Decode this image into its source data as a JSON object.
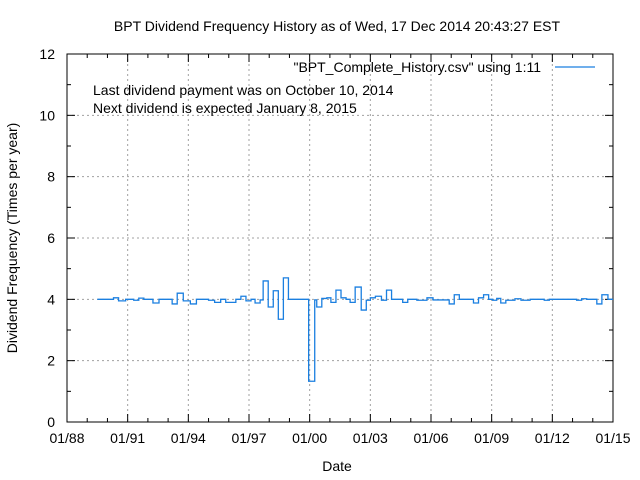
{
  "chart_data": {
    "type": "line",
    "step": true,
    "title": "BPT Dividend Frequency History as of Wed, 17 Dec 2014 20:43:27 EST",
    "xlabel": "Date",
    "ylabel": "Dividend Frequency (Times per year)",
    "xlim": [
      1988.0,
      2015.0
    ],
    "ylim": [
      0,
      12
    ],
    "grid": true,
    "legend": {
      "position": "top-right",
      "entries": [
        "\"BPT_Complete_History.csv\" using 1:11"
      ]
    },
    "annotations": [
      "Last dividend payment was on October 10, 2014",
      "Next dividend is expected January 8, 2015"
    ],
    "xticks": [
      {
        "value": 1988,
        "label": "01/88"
      },
      {
        "value": 1991,
        "label": "01/91"
      },
      {
        "value": 1994,
        "label": "01/94"
      },
      {
        "value": 1997,
        "label": "01/97"
      },
      {
        "value": 2000,
        "label": "01/00"
      },
      {
        "value": 2003,
        "label": "01/03"
      },
      {
        "value": 2006,
        "label": "01/06"
      },
      {
        "value": 2009,
        "label": "01/09"
      },
      {
        "value": 2012,
        "label": "01/12"
      },
      {
        "value": 2015,
        "label": "01/15"
      }
    ],
    "yticks": [
      {
        "value": 0,
        "label": "0"
      },
      {
        "value": 2,
        "label": "2"
      },
      {
        "value": 4,
        "label": "4"
      },
      {
        "value": 6,
        "label": "6"
      },
      {
        "value": 8,
        "label": "8"
      },
      {
        "value": 10,
        "label": "10"
      },
      {
        "value": 12,
        "label": "12"
      }
    ],
    "series": [
      {
        "name": "\"BPT_Complete_History.csv\" using 1:11",
        "color": "#1a7fe0",
        "points": [
          [
            1989.5,
            4.0
          ],
          [
            1990.3,
            4.05
          ],
          [
            1990.55,
            3.95
          ],
          [
            1990.9,
            4.0
          ],
          [
            1991.3,
            3.97
          ],
          [
            1991.55,
            4.04
          ],
          [
            1991.8,
            4.0
          ],
          [
            1992.25,
            3.88
          ],
          [
            1992.55,
            4.0
          ],
          [
            1993.2,
            3.85
          ],
          [
            1993.45,
            4.2
          ],
          [
            1993.75,
            3.95
          ],
          [
            1994.1,
            3.85
          ],
          [
            1994.4,
            4.0
          ],
          [
            1995.0,
            3.97
          ],
          [
            1995.3,
            3.9
          ],
          [
            1995.6,
            4.0
          ],
          [
            1995.85,
            3.9
          ],
          [
            1996.35,
            4.0
          ],
          [
            1996.6,
            4.1
          ],
          [
            1996.85,
            3.95
          ],
          [
            1997.1,
            4.0
          ],
          [
            1997.3,
            3.88
          ],
          [
            1997.55,
            3.98
          ],
          [
            1997.7,
            4.6
          ],
          [
            1997.95,
            3.75
          ],
          [
            1998.2,
            4.28
          ],
          [
            1998.45,
            3.35
          ],
          [
            1998.7,
            4.7
          ],
          [
            1998.95,
            4.0
          ],
          [
            1999.95,
            1.33
          ],
          [
            2000.25,
            3.98
          ],
          [
            2000.35,
            3.75
          ],
          [
            2000.6,
            4.03
          ],
          [
            2000.85,
            4.05
          ],
          [
            2001.05,
            3.9
          ],
          [
            2001.3,
            4.3
          ],
          [
            2001.55,
            4.05
          ],
          [
            2001.8,
            4.0
          ],
          [
            2002.0,
            3.9
          ],
          [
            2002.25,
            4.4
          ],
          [
            2002.55,
            3.65
          ],
          [
            2002.8,
            3.97
          ],
          [
            2003.0,
            4.05
          ],
          [
            2003.25,
            4.1
          ],
          [
            2003.55,
            3.97
          ],
          [
            2003.8,
            4.3
          ],
          [
            2004.05,
            4.0
          ],
          [
            2004.6,
            3.9
          ],
          [
            2004.85,
            4.0
          ],
          [
            2005.3,
            3.97
          ],
          [
            2005.8,
            4.05
          ],
          [
            2006.1,
            3.98
          ],
          [
            2006.9,
            3.85
          ],
          [
            2007.15,
            4.15
          ],
          [
            2007.4,
            4.0
          ],
          [
            2008.1,
            3.88
          ],
          [
            2008.35,
            4.05
          ],
          [
            2008.6,
            4.15
          ],
          [
            2008.85,
            4.0
          ],
          [
            2009.05,
            3.97
          ],
          [
            2009.25,
            4.03
          ],
          [
            2009.45,
            3.88
          ],
          [
            2009.7,
            3.97
          ],
          [
            2010.15,
            4.02
          ],
          [
            2010.45,
            3.97
          ],
          [
            2010.9,
            4.0
          ],
          [
            2011.6,
            3.97
          ],
          [
            2011.85,
            4.0
          ],
          [
            2013.2,
            3.97
          ],
          [
            2013.45,
            4.02
          ],
          [
            2013.7,
            4.0
          ],
          [
            2014.2,
            3.85
          ],
          [
            2014.45,
            4.15
          ],
          [
            2014.75,
            4.0
          ],
          [
            2015.0,
            4.0
          ]
        ]
      }
    ]
  }
}
